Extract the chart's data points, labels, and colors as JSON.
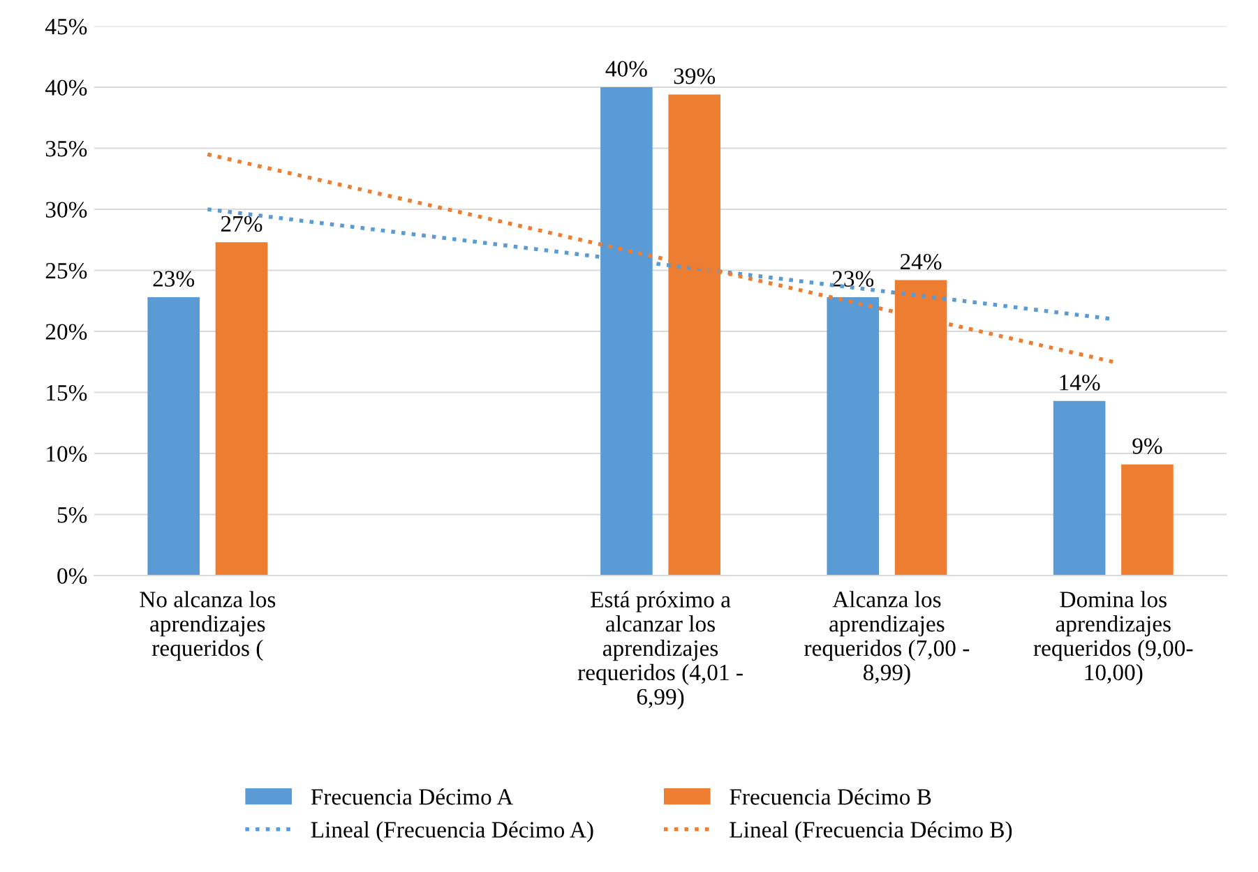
{
  "chart_data": {
    "type": "bar",
    "categories": [
      "No alcanza los\naprendizajes\nrequeridos (",
      null,
      "Está próximo a\nalcanzar los\naprendizajes\nrequeridos (4,01 -\n6,99)",
      "Alcanza los\naprendizajes\nrequeridos (7,00 -\n8,99)",
      "Domina los\naprendizajes\nrequeridos (9,00-\n10,00)"
    ],
    "series": [
      {
        "name": "Frecuencia Décimo A",
        "color": "#5b9bd5",
        "values": [
          22.8,
          null,
          40,
          22.8,
          14.3
        ],
        "value_labels": [
          "23%",
          null,
          "40%",
          "23%",
          "14%"
        ]
      },
      {
        "name": "Frecuencia Décimo B",
        "color": "#ed7d31",
        "values": [
          27.3,
          null,
          39.4,
          24.2,
          9.1
        ],
        "value_labels": [
          "27%",
          null,
          "39%",
          "24%",
          "9%"
        ]
      },
      {
        "name": "Lineal (Frecuencia Décimo A)",
        "type": "line",
        "color": "#5b9bd5",
        "line_style": "dotted",
        "x": [
          "No alcanza los\naprendizajes\nrequeridos (",
          "Domina los\naprendizajes\nrequeridos (9,00-\n10,00)"
        ],
        "values": [
          30,
          21
        ]
      },
      {
        "name": "Lineal (Frecuencia Décimo B)",
        "type": "line",
        "color": "#ed7d31",
        "line_style": "dotted",
        "x": [
          "No alcanza los\naprendizajes\nrequeridos (",
          "Domina los\naprendizajes\nrequeridos (9,00-\n10,00)"
        ],
        "values": [
          34.5,
          17.5
        ]
      }
    ],
    "ylim": [
      0,
      45
    ],
    "yticks": [
      {
        "value": 0,
        "label": "0%"
      },
      {
        "value": 5,
        "label": "5%"
      },
      {
        "value": 10,
        "label": "10%"
      },
      {
        "value": 15,
        "label": "15%"
      },
      {
        "value": 20,
        "label": "20%"
      },
      {
        "value": 25,
        "label": "25%"
      },
      {
        "value": 30,
        "label": "30%"
      },
      {
        "value": 35,
        "label": "35%"
      },
      {
        "value": 40,
        "label": "40%"
      },
      {
        "value": 45,
        "label": "45%"
      }
    ],
    "grid": "y",
    "legend": "bottom"
  }
}
